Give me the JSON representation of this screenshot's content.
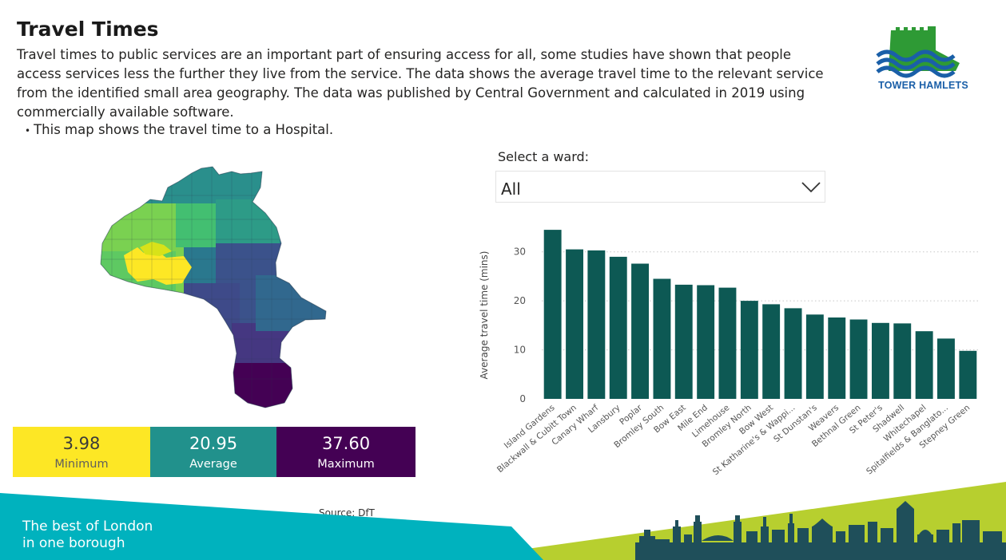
{
  "header": {
    "title": "Travel Times",
    "intro": "Travel times to public services are an important part of ensuring access for all, some studies have shown that people access services less the further they live from the service. The data shows the average travel time to the relevant service from the identified small area geography. The data was published by Central Government and calculated in 2019 using commercially available software.",
    "bullet": "This map shows the travel time to a Hospital."
  },
  "logo": {
    "text": "TOWER HAMLETS"
  },
  "colors": {
    "minimum": "#fde725",
    "average": "#21918c",
    "maximum": "#440154",
    "bar": "#0d5954",
    "footer_teal": "#00b2be",
    "footer_lime": "#b7cf2f",
    "skyline": "#1f4f5a"
  },
  "kpis": {
    "minimum": {
      "value": "3.98",
      "label": "Minimum"
    },
    "average": {
      "value": "20.95",
      "label": "Average"
    },
    "maximum": {
      "value": "37.60",
      "label": "Maximum"
    }
  },
  "source": "Source: DfT",
  "slicer": {
    "label": "Select a ward:",
    "value": "All",
    "icon": "chevron-down-icon"
  },
  "chart_data": {
    "type": "bar",
    "categories": [
      "Island Gardens",
      "Blackwall & Cubitt Town",
      "Canary Wharf",
      "Lansbury",
      "Poplar",
      "Bromley South",
      "Bow East",
      "Mile End",
      "Limehouse",
      "Bromley North",
      "Bow West",
      "St Katharine's & Wappi...",
      "St Dunstan's",
      "Weavers",
      "Bethnal Green",
      "St Peter's",
      "Shadwell",
      "Whitechapel",
      "Spitalfields & Banglato...",
      "Stepney Green"
    ],
    "values": [
      34.5,
      30.5,
      30.3,
      29.0,
      27.6,
      24.5,
      23.3,
      23.2,
      22.7,
      20.0,
      19.3,
      18.5,
      17.2,
      16.6,
      16.2,
      15.5,
      15.4,
      13.8,
      12.3,
      9.8
    ],
    "ylabel": "Average travel time (mins)",
    "xlabel": "",
    "yticks": [
      0,
      10,
      20,
      30
    ],
    "ylim": [
      0,
      35
    ],
    "grid": true
  },
  "footer": {
    "tagline_line1": "The best of London",
    "tagline_line2": "in one borough"
  }
}
